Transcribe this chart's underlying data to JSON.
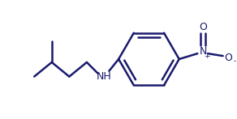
{
  "bg_color": "#ffffff",
  "line_color": "#1a1a6e",
  "line_width": 1.8,
  "font_size_nh": 9,
  "font_size_nitro": 9,
  "font_size_sup": 6.5,
  "font_color": "#1a1a6e",
  "nh_label": "NH",
  "nitro_n_label": "N",
  "nitro_plus": "+",
  "nitro_o_right_label": "O",
  "nitro_o_right_sup": "-",
  "nitro_o_bottom_label": "O"
}
